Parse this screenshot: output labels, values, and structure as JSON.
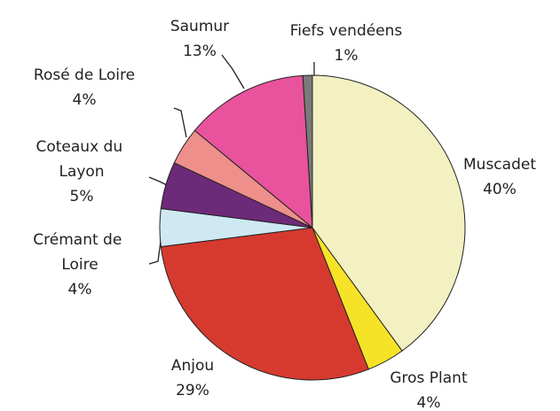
{
  "chart_data": {
    "type": "pie",
    "categories": [
      "Muscadet",
      "Gros Plant",
      "Anjou",
      "Crémant de Loire",
      "Coteaux du Layon",
      "Rosé de Loire",
      "Saumur",
      "Fiefs vendéens"
    ],
    "values": [
      40,
      4,
      29,
      4,
      5,
      4,
      13,
      1
    ],
    "value_labels": [
      "40%",
      "4%",
      "29%",
      "4%",
      "5%",
      "4%",
      "13%",
      "1%"
    ],
    "colors": [
      "#f3f0c2",
      "#f6e328",
      "#d63a2f",
      "#cfe9f3",
      "#6d2a78",
      "#ee8f8b",
      "#e9529c",
      "#7a7a7a"
    ]
  }
}
